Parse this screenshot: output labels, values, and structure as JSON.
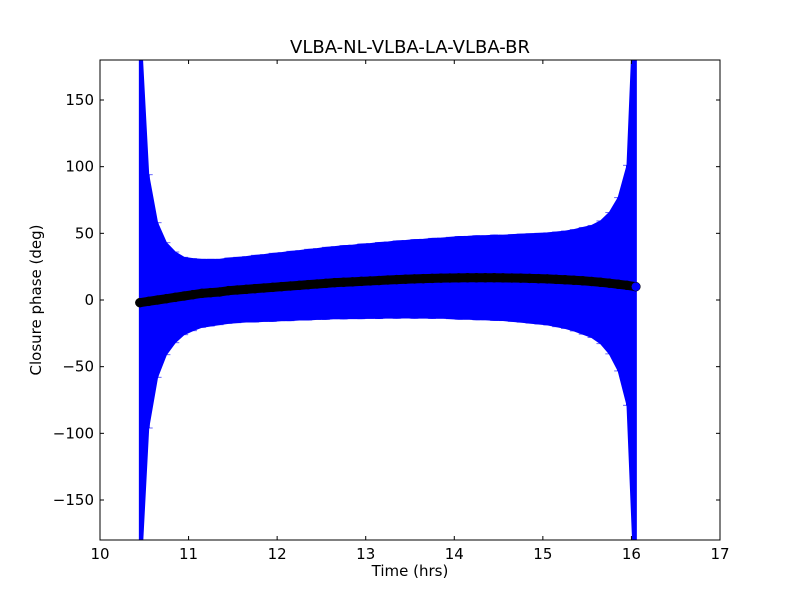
{
  "chart_data": {
    "type": "scatter",
    "title": "VLBA-NL-VLBA-LA-VLBA-BR",
    "xlabel": "Time (hrs)",
    "ylabel": "Closure phase (deg)",
    "xlim": [
      10,
      17
    ],
    "ylim": [
      -180,
      180
    ],
    "xticks": [
      10,
      11,
      12,
      13,
      14,
      15,
      16,
      17
    ],
    "yticks": [
      -150,
      -100,
      -50,
      0,
      50,
      100,
      150
    ],
    "ytick_labels": [
      "−150",
      "−100",
      "−50",
      "0",
      "50",
      "100",
      "150"
    ],
    "grid": false,
    "marker_color": "#000000",
    "errorbar_color": "#0000ff",
    "points": [
      {
        "x": 10.45,
        "y": -2,
        "err": 220
      },
      {
        "x": 10.55,
        "y": -1,
        "err": 95
      },
      {
        "x": 10.65,
        "y": 0,
        "err": 58
      },
      {
        "x": 10.75,
        "y": 1,
        "err": 42
      },
      {
        "x": 10.85,
        "y": 2,
        "err": 34
      },
      {
        "x": 10.95,
        "y": 3,
        "err": 29
      },
      {
        "x": 11.05,
        "y": 4,
        "err": 27
      },
      {
        "x": 11.15,
        "y": 5,
        "err": 25.5
      },
      {
        "x": 11.25,
        "y": 5.5,
        "err": 25
      },
      {
        "x": 11.35,
        "y": 6,
        "err": 24.5
      },
      {
        "x": 11.45,
        "y": 7,
        "err": 24.5
      },
      {
        "x": 11.55,
        "y": 7.5,
        "err": 24.5
      },
      {
        "x": 11.65,
        "y": 8,
        "err": 24.5
      },
      {
        "x": 11.75,
        "y": 8.5,
        "err": 25
      },
      {
        "x": 11.85,
        "y": 9,
        "err": 25
      },
      {
        "x": 11.95,
        "y": 9.5,
        "err": 25.5
      },
      {
        "x": 12.05,
        "y": 10,
        "err": 25.5
      },
      {
        "x": 12.15,
        "y": 10.5,
        "err": 26
      },
      {
        "x": 12.25,
        "y": 11,
        "err": 26
      },
      {
        "x": 12.35,
        "y": 11.5,
        "err": 26.5
      },
      {
        "x": 12.45,
        "y": 12,
        "err": 26.5
      },
      {
        "x": 12.55,
        "y": 12.5,
        "err": 27
      },
      {
        "x": 12.65,
        "y": 13,
        "err": 27
      },
      {
        "x": 12.75,
        "y": 13.3,
        "err": 27.5
      },
      {
        "x": 12.85,
        "y": 13.6,
        "err": 27.5
      },
      {
        "x": 12.95,
        "y": 14,
        "err": 28
      },
      {
        "x": 13.05,
        "y": 14.3,
        "err": 28
      },
      {
        "x": 13.15,
        "y": 14.6,
        "err": 28.5
      },
      {
        "x": 13.25,
        "y": 15,
        "err": 28.5
      },
      {
        "x": 13.35,
        "y": 15.3,
        "err": 29
      },
      {
        "x": 13.45,
        "y": 15.6,
        "err": 29
      },
      {
        "x": 13.55,
        "y": 15.8,
        "err": 29.5
      },
      {
        "x": 13.65,
        "y": 16,
        "err": 29.5
      },
      {
        "x": 13.75,
        "y": 16.2,
        "err": 30
      },
      {
        "x": 13.85,
        "y": 16.4,
        "err": 30
      },
      {
        "x": 13.95,
        "y": 16.5,
        "err": 30.5
      },
      {
        "x": 14.05,
        "y": 16.6,
        "err": 31
      },
      {
        "x": 14.15,
        "y": 16.7,
        "err": 31
      },
      {
        "x": 14.25,
        "y": 16.7,
        "err": 31.5
      },
      {
        "x": 14.35,
        "y": 16.7,
        "err": 31.5
      },
      {
        "x": 14.45,
        "y": 16.7,
        "err": 32
      },
      {
        "x": 14.55,
        "y": 16.6,
        "err": 32
      },
      {
        "x": 14.65,
        "y": 16.5,
        "err": 32.5
      },
      {
        "x": 14.75,
        "y": 16.4,
        "err": 33
      },
      {
        "x": 14.85,
        "y": 16.2,
        "err": 33.5
      },
      {
        "x": 14.95,
        "y": 16,
        "err": 34
      },
      {
        "x": 15.05,
        "y": 15.8,
        "err": 34.5
      },
      {
        "x": 15.15,
        "y": 15.5,
        "err": 35.5
      },
      {
        "x": 15.25,
        "y": 15.2,
        "err": 36.5
      },
      {
        "x": 15.35,
        "y": 14.8,
        "err": 38
      },
      {
        "x": 15.45,
        "y": 14.4,
        "err": 40
      },
      {
        "x": 15.55,
        "y": 13.9,
        "err": 42
      },
      {
        "x": 15.65,
        "y": 13.3,
        "err": 46
      },
      {
        "x": 15.75,
        "y": 12.6,
        "err": 53
      },
      {
        "x": 15.85,
        "y": 11.8,
        "err": 65
      },
      {
        "x": 15.95,
        "y": 11,
        "err": 90
      },
      {
        "x": 16.05,
        "y": 10,
        "err": 250
      }
    ]
  }
}
